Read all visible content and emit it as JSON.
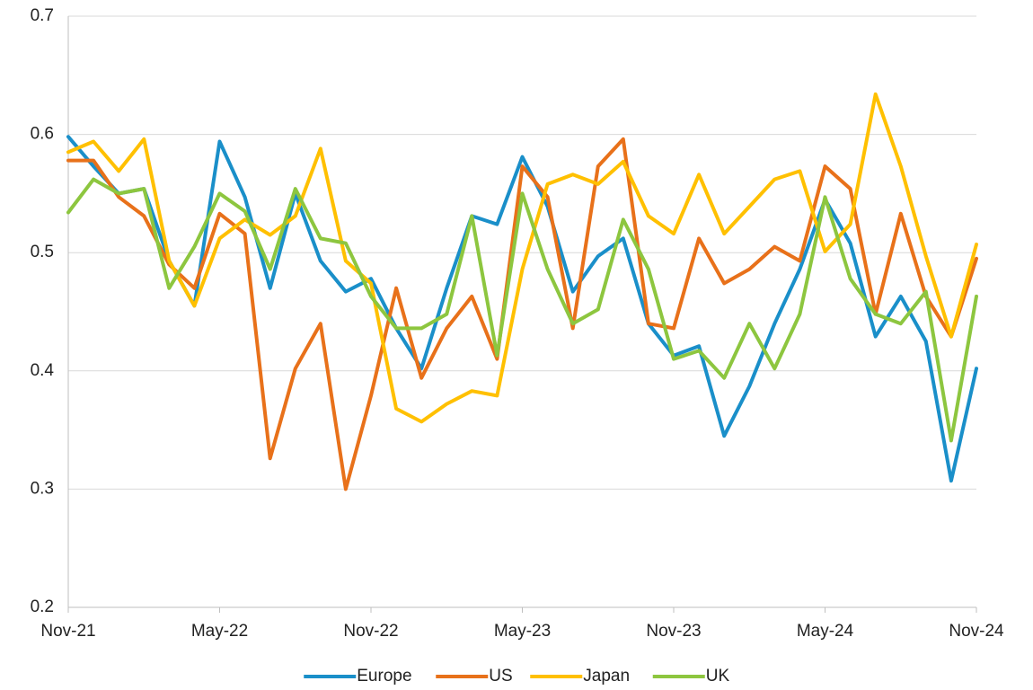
{
  "chart_data": {
    "type": "line",
    "categories": [
      "Nov-21",
      null,
      null,
      null,
      null,
      null,
      "May-22",
      null,
      null,
      null,
      null,
      null,
      "Nov-22",
      null,
      null,
      null,
      null,
      null,
      "May-23",
      null,
      null,
      null,
      null,
      null,
      "Nov-23",
      null,
      null,
      null,
      null,
      null,
      "May-24",
      null,
      null,
      null,
      null,
      null,
      "Nov-24"
    ],
    "series": [
      {
        "name": "Europe",
        "color": "#1a8fc9",
        "values": [
          0.598,
          0.573,
          0.55,
          0.554,
          0.493,
          0.455,
          0.594,
          0.547,
          0.47,
          0.55,
          0.493,
          0.467,
          0.478,
          0.436,
          0.402,
          0.47,
          0.531,
          0.524,
          0.581,
          0.539,
          0.467,
          0.497,
          0.512,
          0.44,
          0.413,
          0.421,
          0.345,
          0.387,
          0.44,
          0.486,
          0.545,
          0.508,
          0.429,
          0.463,
          0.425,
          0.307,
          0.402
        ]
      },
      {
        "name": "US",
        "color": "#e8711a",
        "values": [
          0.578,
          0.578,
          0.547,
          0.531,
          0.49,
          0.47,
          0.533,
          0.516,
          0.326,
          0.402,
          0.44,
          0.3,
          0.379,
          0.47,
          0.394,
          0.436,
          0.463,
          0.41,
          0.573,
          0.547,
          0.436,
          0.573,
          0.596,
          0.44,
          0.436,
          0.512,
          0.474,
          0.486,
          0.505,
          0.493,
          0.573,
          0.554,
          0.448,
          0.533,
          0.463,
          0.429,
          0.495
        ]
      },
      {
        "name": "Japan",
        "color": "#ffc000",
        "values": [
          0.585,
          0.594,
          0.569,
          0.596,
          0.493,
          0.455,
          0.512,
          0.528,
          0.515,
          0.531,
          0.588,
          0.493,
          0.474,
          0.368,
          0.357,
          0.372,
          0.383,
          0.379,
          0.486,
          0.558,
          0.566,
          0.558,
          0.577,
          0.531,
          0.516,
          0.566,
          0.516,
          0.539,
          0.562,
          0.569,
          0.501,
          0.524,
          0.634,
          0.573,
          0.497,
          0.429,
          0.507
        ]
      },
      {
        "name": "UK",
        "color": "#8dc63f",
        "values": [
          0.534,
          0.562,
          0.55,
          0.554,
          0.47,
          0.505,
          0.55,
          0.535,
          0.486,
          0.554,
          0.512,
          0.508,
          0.463,
          0.436,
          0.436,
          0.448,
          0.531,
          0.413,
          0.55,
          0.486,
          0.44,
          0.452,
          0.528,
          0.486,
          0.41,
          0.417,
          0.394,
          0.44,
          0.402,
          0.448,
          0.547,
          0.478,
          0.448,
          0.44,
          0.467,
          0.341,
          0.463
        ]
      }
    ],
    "ylim": [
      0.2,
      0.7
    ],
    "yticks": [
      0.2,
      0.3,
      0.4,
      0.5,
      0.6,
      0.7
    ],
    "grid": true,
    "legend": "bottom"
  }
}
